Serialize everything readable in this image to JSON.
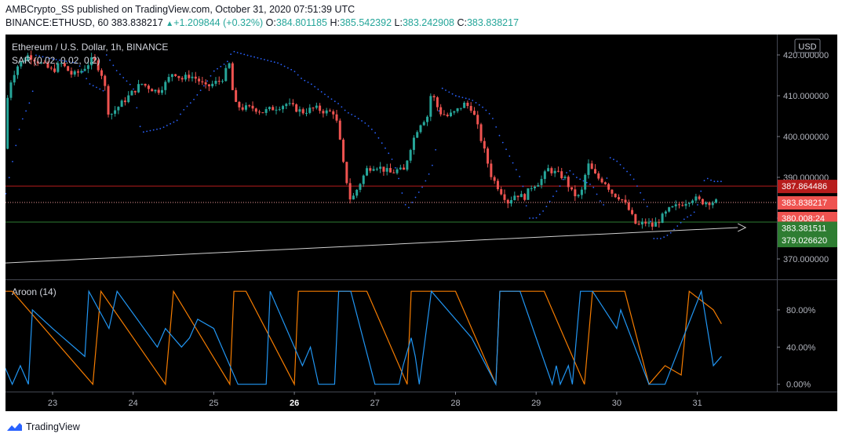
{
  "header": {
    "publisher": "AMBCrypto_SS",
    "published_text": "published on TradingView.com, October 31, 2020 07:51:39 UTC",
    "symbol": "BINANCE:ETHUSD, 60",
    "last": "383.838217",
    "change": "+1.209844 (+0.32%)",
    "o_label": "O:",
    "o": "384.801185",
    "h_label": "H:",
    "h": "385.542392",
    "l_label": "L:",
    "l": "383.242908",
    "c_label": "C:",
    "c": "383.838217"
  },
  "footer": {
    "brand": "TradingView"
  },
  "colors": {
    "up": "#26a69a",
    "down": "#ef5350",
    "sar": "#2962ff",
    "aroon_up": "#f57c00",
    "aroon_down": "#2196f3",
    "resistance": "#b71c1c",
    "support": "#2e7d32",
    "trendline": "#d0d0d0"
  },
  "chart_data": [
    {
      "type": "candlestick",
      "title": "Ethereum / U.S. Dollar, 1h, BINANCE",
      "indicator_label": "SAR (0.02, 0.02, 0.2)",
      "currency": "USD",
      "ylim": [
        365,
        425
      ],
      "y_ticks": [
        "420.000000",
        "410.000000",
        "400.000000",
        "390.000000",
        "380.000000",
        "370.000000"
      ],
      "x_tick_labels": [
        "23",
        "24",
        "25",
        "26",
        "27",
        "28",
        "29",
        "30",
        "31"
      ],
      "x_tick_bold": "26",
      "price_path": [
        [
          22.4,
          397
        ],
        [
          22.45,
          412
        ],
        [
          22.55,
          417
        ],
        [
          22.7,
          420
        ],
        [
          22.85,
          418
        ],
        [
          23.0,
          416
        ],
        [
          23.1,
          418
        ],
        [
          23.25,
          415
        ],
        [
          23.35,
          416
        ],
        [
          23.5,
          419
        ],
        [
          23.6,
          416
        ],
        [
          23.65,
          412
        ],
        [
          23.7,
          405
        ],
        [
          23.8,
          407
        ],
        [
          23.9,
          409
        ],
        [
          24.0,
          411
        ],
        [
          24.1,
          413
        ],
        [
          24.2,
          412
        ],
        [
          24.3,
          411
        ],
        [
          24.4,
          413
        ],
        [
          24.5,
          416
        ],
        [
          24.6,
          414
        ],
        [
          24.7,
          415
        ],
        [
          24.8,
          414
        ],
        [
          24.9,
          412
        ],
        [
          25.0,
          413
        ],
        [
          25.1,
          414
        ],
        [
          25.2,
          418
        ],
        [
          25.25,
          408
        ],
        [
          25.35,
          407
        ],
        [
          25.5,
          407
        ],
        [
          25.6,
          406
        ],
        [
          25.75,
          407
        ],
        [
          25.9,
          408
        ],
        [
          26.0,
          407
        ],
        [
          26.1,
          406
        ],
        [
          26.25,
          407
        ],
        [
          26.4,
          406
        ],
        [
          26.5,
          406
        ],
        [
          26.55,
          401
        ],
        [
          26.6,
          394
        ],
        [
          26.7,
          384
        ],
        [
          26.8,
          388
        ],
        [
          26.9,
          392
        ],
        [
          27.0,
          393
        ],
        [
          27.1,
          392
        ],
        [
          27.2,
          391
        ],
        [
          27.3,
          392
        ],
        [
          27.35,
          391
        ],
        [
          27.45,
          398
        ],
        [
          27.55,
          403
        ],
        [
          27.65,
          405
        ],
        [
          27.7,
          411
        ],
        [
          27.8,
          406
        ],
        [
          27.9,
          405
        ],
        [
          28.0,
          406
        ],
        [
          28.1,
          408
        ],
        [
          28.2,
          407
        ],
        [
          28.25,
          404
        ],
        [
          28.35,
          397
        ],
        [
          28.45,
          390
        ],
        [
          28.55,
          387
        ],
        [
          28.65,
          384
        ],
        [
          28.75,
          386
        ],
        [
          28.85,
          385
        ],
        [
          28.95,
          388
        ],
        [
          29.05,
          389
        ],
        [
          29.15,
          392
        ],
        [
          29.25,
          391
        ],
        [
          29.35,
          390
        ],
        [
          29.45,
          386
        ],
        [
          29.55,
          385
        ],
        [
          29.6,
          390
        ],
        [
          29.65,
          393
        ],
        [
          29.75,
          390
        ],
        [
          29.85,
          389
        ],
        [
          29.95,
          386
        ],
        [
          30.05,
          385
        ],
        [
          30.15,
          382
        ],
        [
          30.25,
          378
        ],
        [
          30.35,
          379
        ],
        [
          30.45,
          378
        ],
        [
          30.55,
          380
        ],
        [
          30.65,
          382
        ],
        [
          30.75,
          383
        ],
        [
          30.85,
          384
        ],
        [
          30.95,
          385
        ],
        [
          31.05,
          384
        ],
        [
          31.15,
          384
        ],
        [
          31.25,
          384
        ]
      ],
      "sar_path": [
        [
          22.42,
          386
        ],
        [
          22.6,
          403
        ],
        [
          22.75,
          410
        ],
        [
          22.78,
          420
        ],
        [
          23.0,
          419
        ],
        [
          23.3,
          418
        ],
        [
          23.35,
          417
        ],
        [
          23.45,
          413
        ],
        [
          23.65,
          411
        ],
        [
          23.67,
          420
        ],
        [
          23.8,
          416
        ],
        [
          24.0,
          412
        ],
        [
          24.1,
          401
        ],
        [
          24.35,
          402
        ],
        [
          24.55,
          404
        ],
        [
          24.6,
          406
        ],
        [
          24.75,
          409
        ],
        [
          24.9,
          413
        ],
        [
          25.0,
          416
        ],
        [
          25.15,
          418
        ],
        [
          25.2,
          419
        ],
        [
          25.22,
          421
        ],
        [
          25.4,
          420
        ],
        [
          25.6,
          419
        ],
        [
          25.8,
          418
        ],
        [
          26.0,
          416
        ],
        [
          26.1,
          414
        ],
        [
          26.2,
          413
        ],
        [
          26.4,
          410
        ],
        [
          26.55,
          408
        ],
        [
          26.65,
          406
        ],
        [
          26.75,
          405
        ],
        [
          26.9,
          403
        ],
        [
          27.0,
          401
        ],
        [
          27.1,
          398
        ],
        [
          27.2,
          395
        ],
        [
          27.28,
          391
        ],
        [
          27.35,
          385
        ],
        [
          27.4,
          382
        ],
        [
          27.5,
          385
        ],
        [
          27.6,
          388
        ],
        [
          27.7,
          392
        ],
        [
          27.75,
          396
        ],
        [
          27.82,
          412
        ],
        [
          28.0,
          410
        ],
        [
          28.2,
          409
        ],
        [
          28.35,
          407
        ],
        [
          28.45,
          405
        ],
        [
          28.55,
          400
        ],
        [
          28.65,
          396
        ],
        [
          28.75,
          392
        ],
        [
          28.8,
          390
        ],
        [
          28.85,
          387
        ],
        [
          28.9,
          380
        ],
        [
          29.0,
          380
        ],
        [
          29.1,
          382
        ],
        [
          29.2,
          385
        ],
        [
          29.3,
          388
        ],
        [
          29.4,
          392
        ],
        [
          29.5,
          390
        ],
        [
          29.6,
          389
        ],
        [
          29.7,
          388
        ],
        [
          29.75,
          386
        ],
        [
          29.8,
          384
        ],
        [
          29.85,
          383
        ],
        [
          29.9,
          395
        ],
        [
          30.0,
          394
        ],
        [
          30.1,
          392
        ],
        [
          30.2,
          390
        ],
        [
          30.3,
          386
        ],
        [
          30.35,
          384
        ],
        [
          30.4,
          382
        ],
        [
          30.45,
          375
        ],
        [
          30.55,
          375
        ],
        [
          30.65,
          376
        ],
        [
          30.75,
          378
        ],
        [
          30.85,
          380
        ],
        [
          30.95,
          381
        ],
        [
          31.0,
          383
        ],
        [
          31.05,
          387
        ],
        [
          31.1,
          390
        ],
        [
          31.2,
          389
        ],
        [
          31.3,
          389
        ]
      ],
      "horizontal_lines": [
        {
          "name": "resistance",
          "y": 387.864486,
          "label": "387.864486"
        },
        {
          "name": "support",
          "y": 379.02662,
          "label": "379.026620"
        },
        {
          "name": "last-price",
          "y": 383.838217,
          "label": "383.838217"
        }
      ],
      "trendline": {
        "start": [
          22.4,
          369.0
        ],
        "end": [
          31.6,
          377.7
        ]
      },
      "price_labels": [
        {
          "name": "resistance-tag",
          "text": "387.864486",
          "y": 387.864486
        },
        {
          "name": "last-price-tag",
          "text": "383.838217",
          "y": 383.838217
        },
        {
          "name": "countdown-tag",
          "text": "380.008:24",
          "y": 380.0
        },
        {
          "name": "trend-tag",
          "text": "383.381511",
          "y": 377.6
        },
        {
          "name": "support-tag",
          "text": "379.026620",
          "y": 374.6
        }
      ]
    },
    {
      "type": "line",
      "title": "Aroon (14)",
      "ylim": [
        -7,
        112
      ],
      "y_ticks": [
        "80.00%",
        "40.00%",
        "0.00%"
      ],
      "series": [
        {
          "name": "Aroon Up",
          "values": [
            [
              22.4,
              100
            ],
            [
              22.5,
              100
            ],
            [
              23.5,
              0
            ],
            [
              23.6,
              100
            ],
            [
              24.4,
              0
            ],
            [
              24.5,
              100
            ],
            [
              25.2,
              0
            ],
            [
              25.25,
              100
            ],
            [
              25.4,
              100
            ],
            [
              26.0,
              0
            ],
            [
              26.05,
              100
            ],
            [
              26.2,
              100
            ],
            [
              26.9,
              100
            ],
            [
              27.4,
              0
            ],
            [
              27.45,
              100
            ],
            [
              27.7,
              100
            ],
            [
              28.0,
              100
            ],
            [
              28.5,
              0
            ],
            [
              28.55,
              100
            ],
            [
              29.1,
              100
            ],
            [
              29.6,
              0
            ],
            [
              29.7,
              100
            ],
            [
              30.1,
              100
            ],
            [
              30.4,
              0
            ],
            [
              30.6,
              20
            ],
            [
              30.8,
              10
            ],
            [
              30.9,
              100
            ],
            [
              31.2,
              80
            ],
            [
              31.3,
              65
            ]
          ]
        },
        {
          "name": "Aroon Down",
          "values": [
            [
              22.4,
              20
            ],
            [
              22.5,
              0
            ],
            [
              22.6,
              20
            ],
            [
              22.7,
              0
            ],
            [
              22.75,
              80
            ],
            [
              23.0,
              60
            ],
            [
              23.4,
              30
            ],
            [
              23.45,
              100
            ],
            [
              23.7,
              60
            ],
            [
              23.8,
              100
            ],
            [
              24.3,
              40
            ],
            [
              24.4,
              60
            ],
            [
              24.6,
              40
            ],
            [
              24.7,
              50
            ],
            [
              24.8,
              70
            ],
            [
              25.0,
              60
            ],
            [
              25.3,
              0
            ],
            [
              25.65,
              0
            ],
            [
              25.7,
              100
            ],
            [
              26.1,
              20
            ],
            [
              26.2,
              40
            ],
            [
              26.3,
              0
            ],
            [
              26.5,
              0
            ],
            [
              26.55,
              100
            ],
            [
              26.7,
              100
            ],
            [
              27.0,
              0
            ],
            [
              27.3,
              0
            ],
            [
              27.35,
              20
            ],
            [
              27.45,
              50
            ],
            [
              27.5,
              30
            ],
            [
              27.55,
              0
            ],
            [
              27.7,
              100
            ],
            [
              28.2,
              50
            ],
            [
              28.5,
              0
            ],
            [
              28.55,
              100
            ],
            [
              28.8,
              100
            ],
            [
              29.0,
              50
            ],
            [
              29.2,
              0
            ],
            [
              29.25,
              20
            ],
            [
              29.3,
              0
            ],
            [
              29.4,
              20
            ],
            [
              29.45,
              0
            ],
            [
              29.55,
              100
            ],
            [
              29.7,
              100
            ],
            [
              30.0,
              60
            ],
            [
              30.05,
              80
            ],
            [
              30.4,
              0
            ],
            [
              30.6,
              0
            ],
            [
              31.05,
              100
            ],
            [
              31.2,
              20
            ],
            [
              31.3,
              30
            ]
          ]
        }
      ]
    }
  ]
}
